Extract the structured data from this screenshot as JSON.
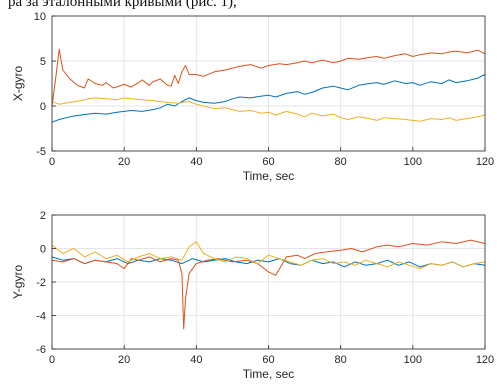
{
  "header_fragment": "ра за эталонными кривыми (рис. 1),",
  "colors": {
    "series": [
      "#0072BD",
      "#D95319",
      "#EDB120"
    ],
    "grid": "#e6e6e6",
    "axis": "#262626"
  },
  "chart_data": [
    {
      "type": "line",
      "title": "",
      "xlabel": "Time, sec",
      "ylabel": "X-gyro",
      "xlim": [
        0,
        120
      ],
      "ylim": [
        -5,
        10
      ],
      "xticks": [
        "0",
        "20",
        "40",
        "60",
        "80",
        "100",
        "120"
      ],
      "yticks": [
        "-5",
        "0",
        "5",
        "10"
      ],
      "grid": true,
      "series": [
        {
          "x": [
            0,
            2,
            5,
            8,
            10,
            12,
            15,
            18,
            20,
            22,
            25,
            28,
            30,
            32,
            34,
            36,
            38,
            40,
            42,
            45,
            48,
            50,
            52,
            55,
            58,
            60,
            62,
            65,
            68,
            70,
            72,
            75,
            78,
            80,
            82,
            85,
            88,
            90,
            92,
            95,
            98,
            100,
            102,
            105,
            108,
            110,
            112,
            115,
            118,
            120
          ],
          "y": [
            -1.8,
            -1.5,
            -1.2,
            -1.0,
            -0.9,
            -0.8,
            -0.9,
            -0.7,
            -0.6,
            -0.5,
            -0.6,
            -0.4,
            -0.2,
            0.2,
            0.0,
            0.5,
            0.9,
            0.6,
            0.4,
            0.3,
            0.5,
            0.8,
            1.0,
            0.9,
            1.1,
            1.2,
            1.0,
            1.4,
            1.6,
            1.3,
            1.5,
            2.0,
            2.2,
            2.0,
            1.8,
            2.3,
            2.5,
            2.6,
            2.4,
            2.8,
            2.5,
            2.6,
            2.3,
            2.7,
            2.5,
            2.9,
            2.6,
            2.8,
            3.1,
            3.5
          ]
        },
        {
          "x": [
            0,
            1,
            2,
            3,
            5,
            7,
            9,
            10,
            12,
            14,
            15,
            17,
            20,
            22,
            24,
            25,
            27,
            28,
            30,
            32,
            33,
            34,
            35,
            36,
            37,
            38,
            40,
            42,
            45,
            48,
            50,
            52,
            55,
            58,
            60,
            63,
            65,
            68,
            70,
            72,
            75,
            78,
            80,
            82,
            85,
            88,
            90,
            92,
            95,
            98,
            100,
            102,
            105,
            108,
            110,
            112,
            115,
            118,
            120
          ],
          "y": [
            0,
            3,
            6.3,
            4.0,
            3.0,
            2.3,
            2.0,
            3.0,
            2.5,
            2.3,
            2.6,
            2.0,
            2.4,
            2.1,
            2.6,
            2.9,
            2.3,
            2.7,
            3.0,
            2.3,
            2.2,
            3.4,
            2.5,
            3.8,
            4.5,
            3.5,
            3.5,
            3.3,
            3.8,
            4.0,
            4.2,
            4.4,
            4.6,
            4.2,
            4.5,
            4.7,
            4.6,
            4.8,
            5.0,
            4.8,
            5.1,
            4.8,
            5.0,
            5.3,
            5.2,
            5.4,
            5.5,
            5.3,
            5.6,
            5.8,
            5.5,
            5.7,
            5.9,
            5.8,
            6.0,
            6.1,
            5.9,
            6.2,
            5.8
          ]
        },
        {
          "x": [
            0,
            2,
            5,
            8,
            10,
            12,
            15,
            18,
            20,
            22,
            25,
            28,
            30,
            32,
            35,
            38,
            40,
            42,
            45,
            48,
            50,
            52,
            55,
            58,
            60,
            62,
            65,
            68,
            70,
            72,
            75,
            78,
            80,
            82,
            85,
            88,
            90,
            92,
            95,
            98,
            100,
            102,
            105,
            108,
            110,
            112,
            115,
            118,
            120
          ],
          "y": [
            0.5,
            0.2,
            0.4,
            0.6,
            0.8,
            0.9,
            0.8,
            0.7,
            0.9,
            0.8,
            0.7,
            0.6,
            0.5,
            0.4,
            0.3,
            0.5,
            0.2,
            0.0,
            -0.3,
            -0.2,
            -0.4,
            -0.6,
            -0.5,
            -0.8,
            -0.7,
            -1.0,
            -0.6,
            -0.9,
            -1.2,
            -0.8,
            -1.1,
            -0.9,
            -1.3,
            -1.5,
            -1.2,
            -1.4,
            -1.6,
            -1.3,
            -1.4,
            -1.5,
            -1.6,
            -1.7,
            -1.4,
            -1.5,
            -1.3,
            -1.6,
            -1.4,
            -1.2,
            -1.0
          ]
        }
      ]
    },
    {
      "type": "line",
      "title": "",
      "xlabel": "Time, sec",
      "ylabel": "Y-gyro",
      "xlim": [
        0,
        120
      ],
      "ylim": [
        -6,
        2
      ],
      "xticks": [
        "0",
        "20",
        "40",
        "60",
        "80",
        "100",
        "120"
      ],
      "yticks": [
        "-6",
        "-4",
        "-2",
        "0",
        "2"
      ],
      "grid": true,
      "series": [
        {
          "x": [
            0,
            3,
            6,
            9,
            12,
            15,
            18,
            21,
            24,
            27,
            30,
            33,
            36,
            39,
            42,
            45,
            48,
            51,
            54,
            57,
            60,
            63,
            66,
            69,
            72,
            75,
            78,
            81,
            84,
            87,
            90,
            93,
            96,
            99,
            102,
            105,
            108,
            111,
            114,
            117,
            120
          ],
          "y": [
            -0.5,
            -0.7,
            -0.6,
            -0.9,
            -0.7,
            -0.8,
            -0.6,
            -0.9,
            -0.7,
            -0.8,
            -0.6,
            -0.7,
            -0.9,
            -0.6,
            -0.8,
            -0.7,
            -0.6,
            -0.8,
            -0.9,
            -0.7,
            -0.8,
            -0.6,
            -0.9,
            -1.0,
            -0.7,
            -0.9,
            -0.8,
            -1.1,
            -0.8,
            -1.0,
            -0.9,
            -0.7,
            -1.0,
            -0.8,
            -1.1,
            -0.9,
            -1.0,
            -0.8,
            -1.1,
            -0.9,
            -1.0
          ]
        },
        {
          "x": [
            0,
            3,
            6,
            9,
            12,
            15,
            18,
            20,
            22,
            24,
            27,
            30,
            33,
            35,
            36,
            36.5,
            37,
            38,
            40,
            43,
            46,
            50,
            54,
            57,
            60,
            62,
            65,
            68,
            70,
            73,
            76,
            80,
            83,
            86,
            90,
            93,
            96,
            100,
            104,
            108,
            112,
            116,
            120
          ],
          "y": [
            -0.7,
            -0.8,
            -0.6,
            -0.9,
            -0.7,
            -0.8,
            -0.9,
            -1.2,
            -0.6,
            -0.7,
            -0.5,
            -0.8,
            -0.6,
            -0.7,
            -1.5,
            -4.8,
            -3.0,
            -1.5,
            -0.9,
            -0.7,
            -0.6,
            -0.8,
            -0.7,
            -0.9,
            -1.4,
            -1.6,
            -0.5,
            -0.4,
            -0.6,
            -0.3,
            -0.2,
            -0.1,
            0.0,
            -0.2,
            0.1,
            0.2,
            0.1,
            0.3,
            0.2,
            0.4,
            0.3,
            0.5,
            0.3
          ]
        },
        {
          "x": [
            0,
            3,
            6,
            9,
            12,
            15,
            18,
            21,
            24,
            27,
            30,
            33,
            36,
            38,
            40,
            42,
            45,
            48,
            51,
            54,
            57,
            60,
            63,
            66,
            69,
            72,
            75,
            78,
            81,
            84,
            87,
            90,
            93,
            96,
            99,
            102,
            105,
            108,
            111,
            114,
            117,
            120
          ],
          "y": [
            0.2,
            -0.3,
            0.0,
            -0.5,
            -0.2,
            -0.6,
            -0.4,
            -0.8,
            -0.5,
            -0.3,
            -0.6,
            -0.5,
            -0.7,
            0.1,
            0.4,
            -0.3,
            -0.6,
            -0.8,
            -0.5,
            -0.6,
            -0.9,
            -0.4,
            -0.6,
            -0.8,
            -1.0,
            -0.7,
            -0.6,
            -0.9,
            -0.8,
            -1.0,
            -0.7,
            -0.9,
            -1.1,
            -0.8,
            -1.0,
            -1.2,
            -0.9,
            -1.0,
            -0.8,
            -1.1,
            -0.9,
            -0.8
          ]
        }
      ]
    }
  ]
}
